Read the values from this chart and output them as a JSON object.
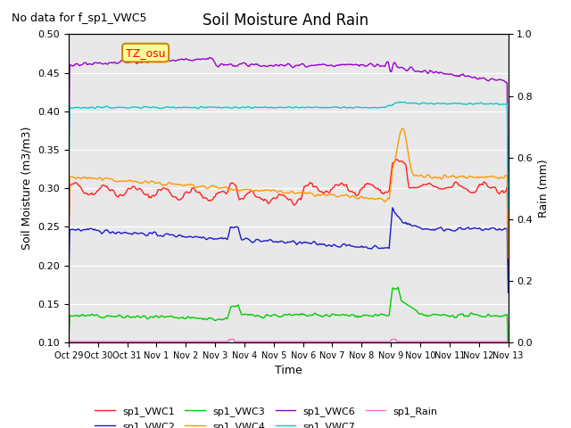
{
  "title": "Soil Moisture And Rain",
  "subtitle": "No data for f_sp1_VWC5",
  "xlabel": "Time",
  "ylabel_left": "Soil Moisture (m3/m3)",
  "ylabel_right": "Rain (mm)",
  "annotation": "TZ_osu",
  "x_tick_labels": [
    "Oct 29",
    "Oct 30",
    "Oct 31",
    "Nov 1",
    "Nov 2",
    "Nov 3",
    "Nov 4",
    "Nov 5",
    "Nov 6",
    "Nov 7",
    "Nov 8",
    "Nov 9",
    "Nov 10",
    "Nov 11",
    "Nov 12",
    "Nov 13"
  ],
  "ylim_left": [
    0.1,
    0.5
  ],
  "ylim_right": [
    0.0,
    1.0
  ],
  "background_color": "#e8e8e8",
  "series_colors": {
    "VWC1": "#ff2020",
    "VWC2": "#1a1acc",
    "VWC3": "#00cc00",
    "VWC4": "#ff9900",
    "VWC6": "#9900cc",
    "VWC7": "#00cccc",
    "Rain": "#ff66cc"
  },
  "num_points": 400
}
